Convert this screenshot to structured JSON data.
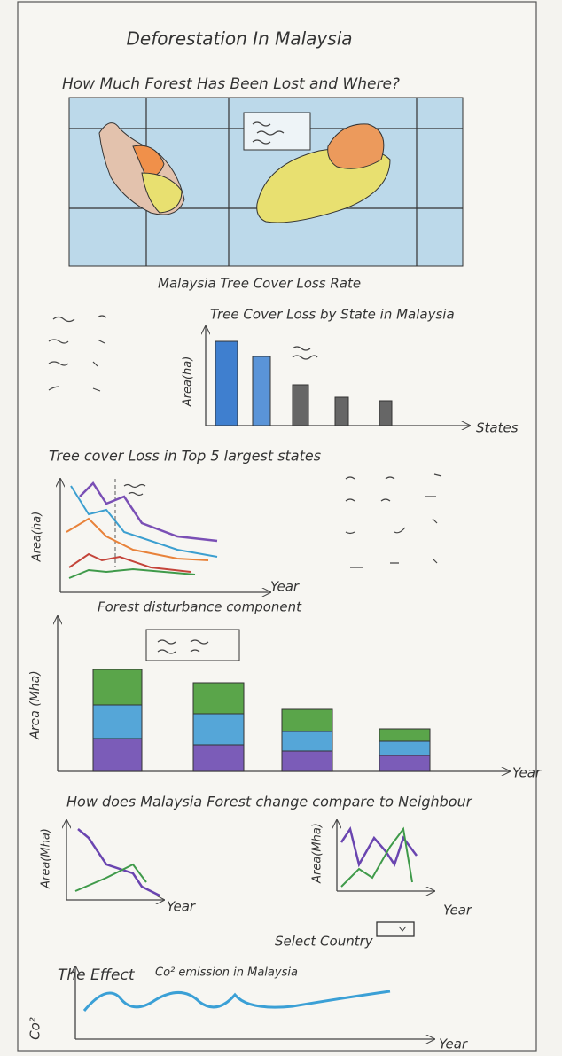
{
  "header": {
    "title": "Deforestation In Malaysia"
  },
  "map_section": {
    "heading": "How Much Forest Has Been Lost and Where?",
    "caption": "Malaysia Tree Cover Loss Rate"
  },
  "state_bar": {
    "title": "Tree Cover Loss by State in Malaysia",
    "y_label": "Area(ha)",
    "x_label": "States"
  },
  "top5_line": {
    "title": "Tree cover Loss in Top 5 largest states",
    "y_label": "Area(ha)",
    "x_label": "Year"
  },
  "disturbance": {
    "title": "Forest disturbance component",
    "y_label": "Area (Mha)",
    "x_label": "Year"
  },
  "neighbour": {
    "title": "How does Malaysia Forest change compare to Neighbour",
    "left": {
      "y_label": "Area(Mha)",
      "x_label": "Year"
    },
    "right": {
      "y_label": "Area(Mha)",
      "x_label": "Year"
    },
    "select_label": "Select Country"
  },
  "effect": {
    "title": "The Effect",
    "subtitle": "Co² emission in Malaysia",
    "y_label": "Co²",
    "x_label": "Year"
  }
}
